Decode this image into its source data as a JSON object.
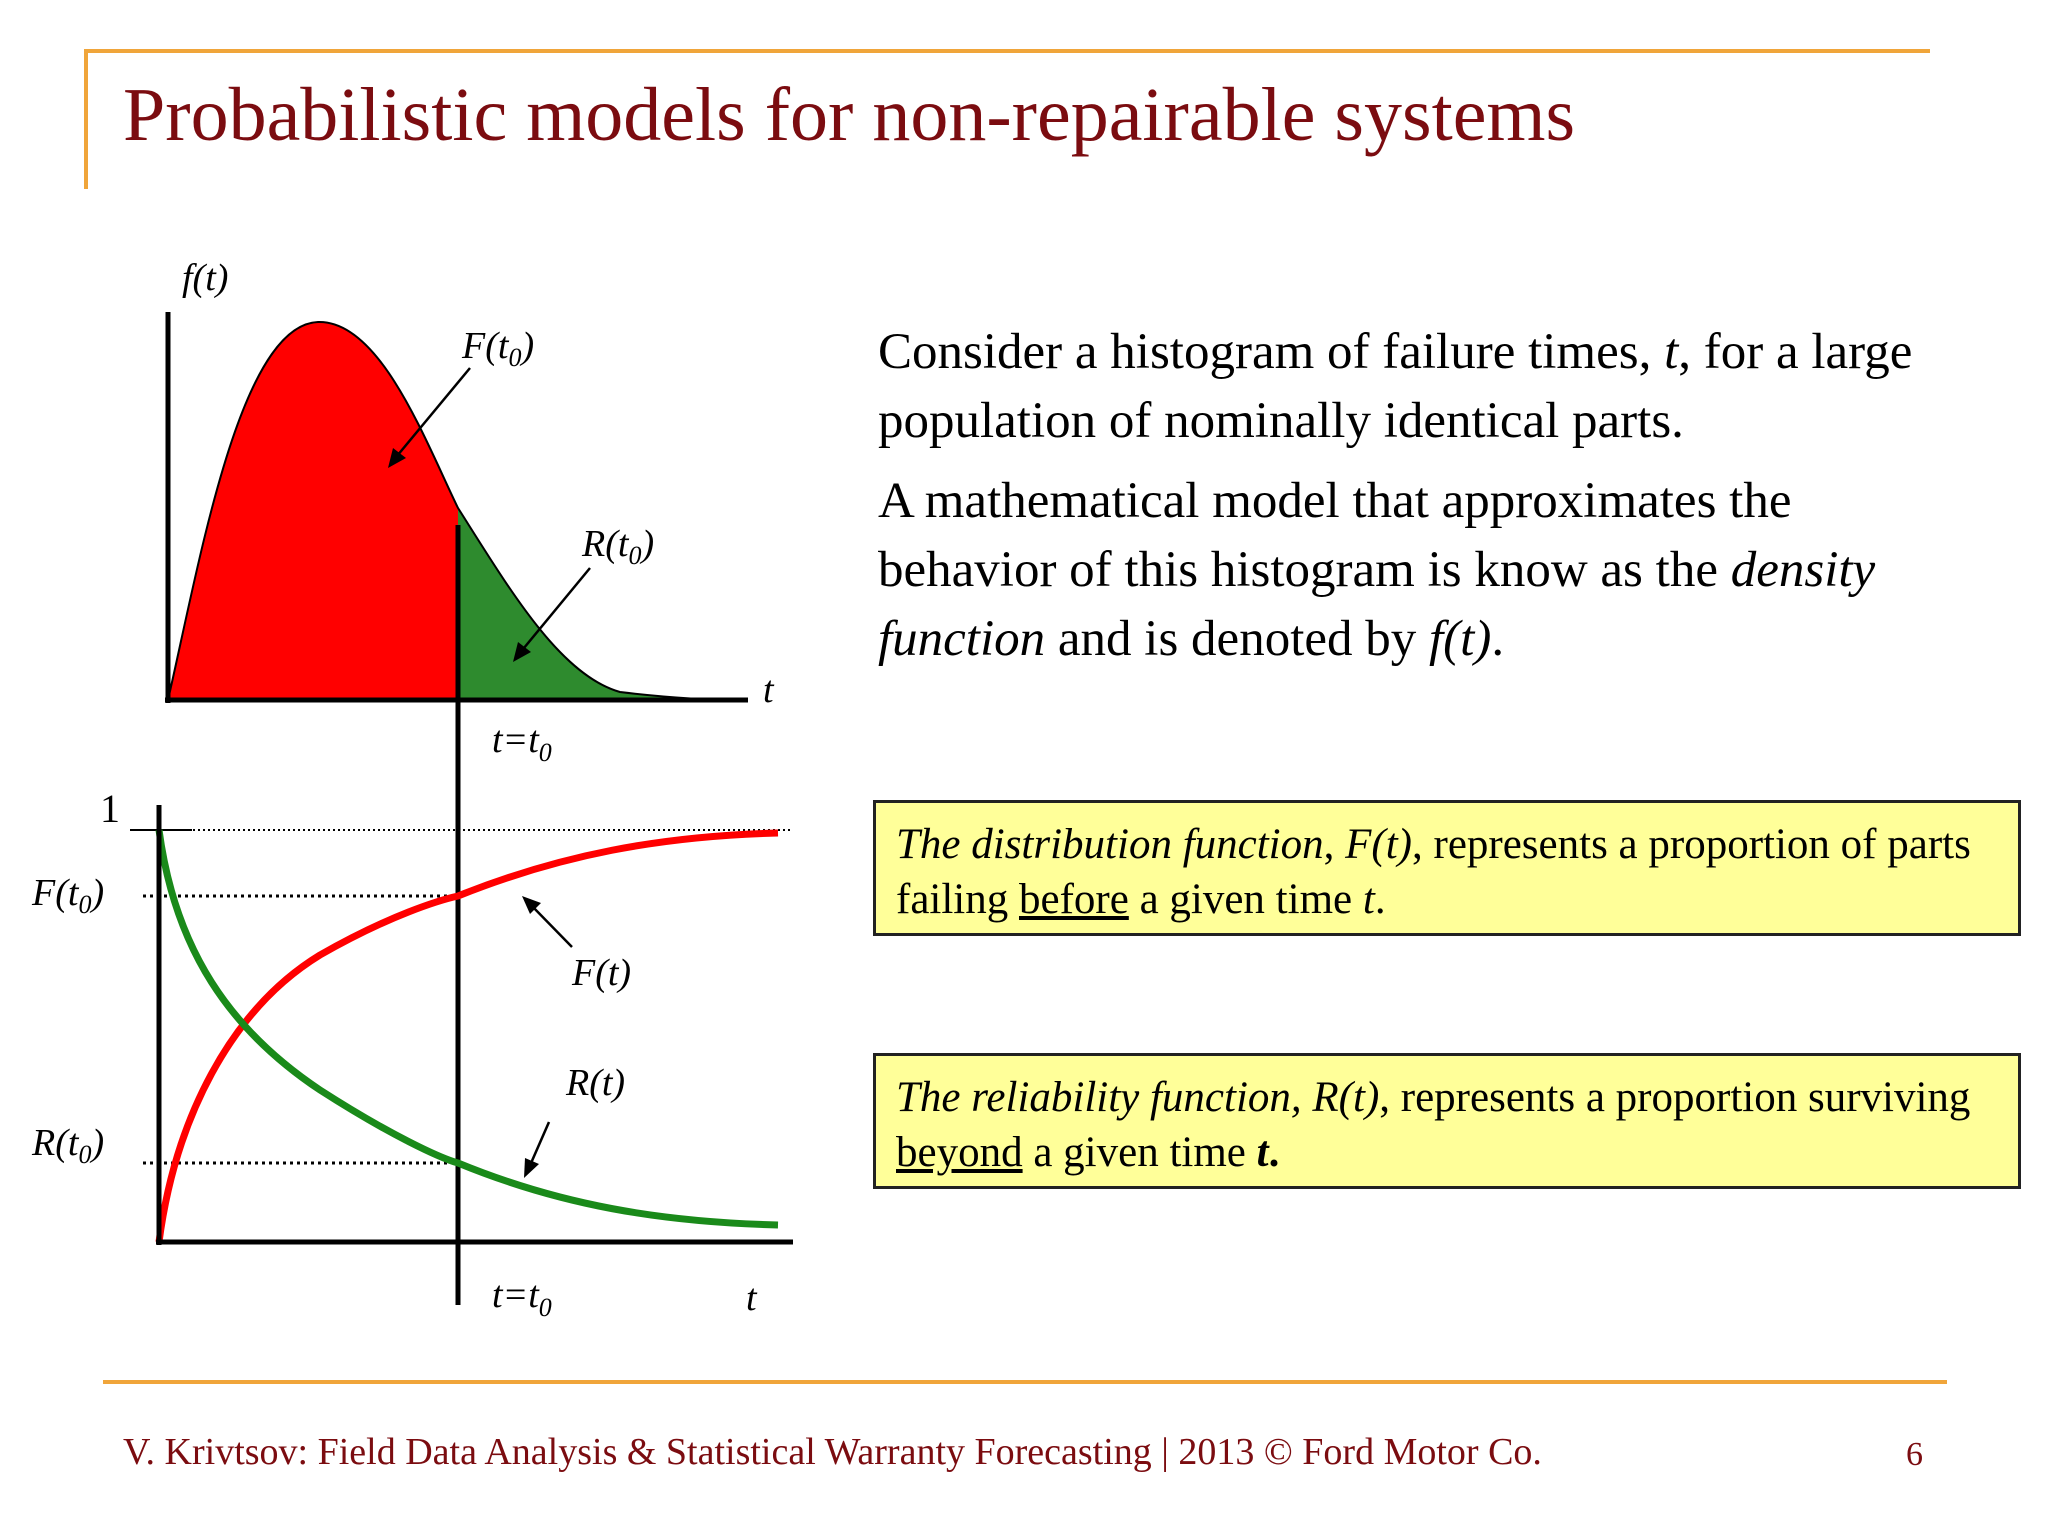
{
  "slide": {
    "title": "Probabilistic models for non-repairable systems",
    "footer": "V. Krivtsov: Field Data Analysis & Statistical Warranty Forecasting |  2013 © Ford Motor Co.",
    "page_number": "6"
  },
  "intro": {
    "p1_a": "Consider a histogram of failure times, ",
    "p1_var": "t",
    "p1_b": ", for a large population of nominally identical parts.",
    "p2_a": "A mathematical model that approximates the behavior of this histogram is know as the ",
    "p2_term": "density function",
    "p2_b": " and is denoted by ",
    "p2_fn": "f(t)",
    "p2_c": "."
  },
  "box_distribution": {
    "term": "The distribution function",
    "comma": ", ",
    "fn": "F(t)",
    "text_a": ", represents a proportion of parts failing ",
    "keyword": "before",
    "text_b": " a given time ",
    "var": "t",
    "end": "."
  },
  "box_reliability": {
    "term": "The reliability function, R(t)",
    "text_a": ", represents a proportion surviving ",
    "keyword": "beyond",
    "text_b": " a given time ",
    "var": "t",
    "end": "."
  },
  "density_plot": {
    "y_label": "f(t)",
    "x_label": "t",
    "t0_label_pre": "t=t",
    "t0_sub": "0",
    "F_area_label": "F(t",
    "R_area_label": "R(t",
    "sub": "0",
    "close": ")",
    "colors": {
      "F_area": "#ff0000",
      "R_area": "#2e8b2e"
    }
  },
  "cdf_plot": {
    "one_label": "1",
    "F_t0_label": "F(t",
    "R_t0_label": "R(t",
    "sub": "0",
    "close": ")",
    "F_curve_label": "F(t)",
    "R_curve_label": "R(t)",
    "t0_label_pre": "t=t",
    "t0_sub": "0",
    "x_label": "t",
    "colors": {
      "F_curve": "#ff0000",
      "R_curve": "#1a8a1a"
    }
  }
}
